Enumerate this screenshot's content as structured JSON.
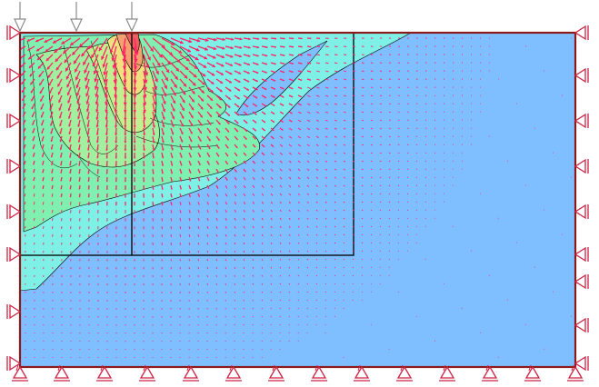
{
  "view": {
    "type": "finite-element-displacement-plot",
    "background": "#ffffff",
    "domain_fill": "#80bfff",
    "boundary_color": "#8b1a1a",
    "support_color": "#cc2244",
    "vector_color": "#ff2266",
    "mesh_line_color": "#000000",
    "load_arrow_color": "#8c8c8c",
    "contour_colors": [
      "#80bfff",
      "#7ff0e6",
      "#80f0b0",
      "#b0f090",
      "#f0e080",
      "#f5a070",
      "#ee6060"
    ],
    "legend_visible": false,
    "grid_visible": false
  },
  "icons": {
    "load": "down-arrow-icon",
    "support": "roller-support-icon",
    "vector": "displacement-arrow-icon"
  }
}
